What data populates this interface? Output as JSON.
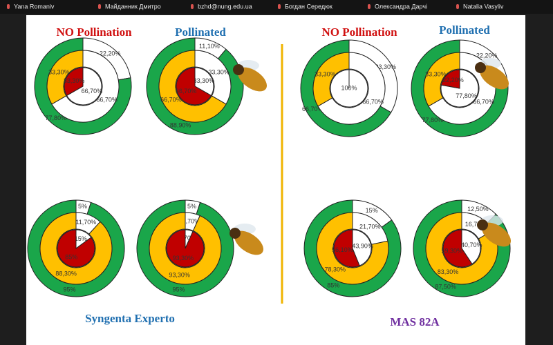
{
  "participants": [
    "Yana Romaniv",
    "Майданник Дмитро",
    "bzhd@nung.edu.ua",
    "Богдан Середюк",
    "Олександра Дарчі",
    "Natalia Vasyliv"
  ],
  "headings": [
    {
      "text": "NO Pollination",
      "color": "#d01010"
    },
    {
      "text": "Pollinated",
      "color": "#1f6fb0"
    },
    {
      "text": "NO Pollination",
      "color": "#d01010"
    },
    {
      "text": "Pollinated",
      "color": "#1f6fb0"
    }
  ],
  "captions": [
    {
      "text": "Syngenta Experto",
      "color": "#1f6fb0"
    },
    {
      "text": "MAS 82A",
      "color": "#7030a0"
    }
  ],
  "blank_color": "#ffffff",
  "donuts": [
    {
      "rings": [
        {
          "color": "#1aa64a",
          "segments": [
            {
              "value": 22.2,
              "label": "22,20%"
            },
            {
              "value": 77.8,
              "label": "77,80%"
            }
          ]
        },
        {
          "color": "#ffc000",
          "segments": [
            {
              "value": 66.7,
              "label": "66,70%"
            },
            {
              "value": 33.3,
              "label": "33,30%"
            }
          ]
        },
        {
          "color": "#c00000",
          "segments": [
            {
              "value": 66.7,
              "label": "66,70%"
            },
            {
              "value": 33.3,
              "label": "33,30%"
            }
          ]
        }
      ]
    },
    {
      "rings": [
        {
          "color": "#1aa64a",
          "segments": [
            {
              "value": 11.1,
              "label": "11,10%"
            },
            {
              "value": 88.9,
              "label": "88,90%"
            }
          ]
        },
        {
          "color": "#ffc000",
          "segments": [
            {
              "value": 33.3,
              "label": "33,30%"
            },
            {
              "value": 66.7,
              "label": "66,70%"
            }
          ]
        },
        {
          "color": "#c00000",
          "segments": [
            {
              "value": 33.3,
              "label": "33,30%"
            },
            {
              "value": 66.7,
              "label": "66,70%"
            }
          ]
        }
      ]
    },
    {
      "rings": [
        {
          "color": "#1aa64a",
          "segments": [
            {
              "value": 33.3,
              "label": "33,30%"
            },
            {
              "value": 66.7,
              "label": "66,70%"
            }
          ]
        },
        {
          "color": "#ffc000",
          "segments": [
            {
              "value": 66.7,
              "label": "66,70%"
            },
            {
              "value": 33.3,
              "label": "33,30%"
            }
          ]
        },
        {
          "color": "#c00000",
          "segments": [
            {
              "value": 100,
              "label": "100%"
            }
          ]
        }
      ]
    },
    {
      "rings": [
        {
          "color": "#1aa64a",
          "segments": [
            {
              "value": 22.2,
              "label": "22,20%"
            },
            {
              "value": 77.8,
              "label": "77,80%"
            }
          ]
        },
        {
          "color": "#ffc000",
          "segments": [
            {
              "value": 66.7,
              "label": "66,70%"
            },
            {
              "value": 33.3,
              "label": "33,30%"
            }
          ]
        },
        {
          "color": "#c00000",
          "segments": [
            {
              "value": 77.8,
              "label": "77,80%"
            },
            {
              "value": 22.2,
              "label": "22,20%"
            }
          ]
        }
      ]
    },
    {
      "rings": [
        {
          "color": "#1aa64a",
          "segments": [
            {
              "value": 5,
              "label": "5%"
            },
            {
              "value": 95,
              "label": "95%"
            }
          ]
        },
        {
          "color": "#ffc000",
          "segments": [
            {
              "value": 11.7,
              "label": "11,70%"
            },
            {
              "value": 88.3,
              "label": "88,30%"
            }
          ]
        },
        {
          "color": "#c00000",
          "segments": [
            {
              "value": 15,
              "label": "15%"
            },
            {
              "value": 85,
              "label": "85%"
            }
          ]
        }
      ]
    },
    {
      "rings": [
        {
          "color": "#1aa64a",
          "segments": [
            {
              "value": 5,
              "label": "5%"
            },
            {
              "value": 95,
              "label": "95%"
            }
          ]
        },
        {
          "color": "#ffc000",
          "segments": [
            {
              "value": 6.7,
              "label": "6,70%"
            },
            {
              "value": 93.3,
              "label": "93,30%"
            }
          ]
        },
        {
          "color": "#c00000",
          "segments": [
            {
              "value": 6.7,
              "label": "6,70%"
            },
            {
              "value": 93.3,
              "label": "93,30%"
            }
          ]
        }
      ]
    },
    {
      "rings": [
        {
          "color": "#1aa64a",
          "segments": [
            {
              "value": 15,
              "label": "15%"
            },
            {
              "value": 85,
              "label": "85%"
            }
          ]
        },
        {
          "color": "#ffc000",
          "segments": [
            {
              "value": 21.7,
              "label": "21,70%"
            },
            {
              "value": 78.3,
              "label": "78,30%"
            }
          ]
        },
        {
          "color": "#c00000",
          "segments": [
            {
              "value": 43.9,
              "label": "43,90%"
            },
            {
              "value": 56.1,
              "label": "56,10%"
            }
          ]
        }
      ]
    },
    {
      "rings": [
        {
          "color": "#1aa64a",
          "segments": [
            {
              "value": 12.5,
              "label": "12,50%"
            },
            {
              "value": 87.5,
              "label": "87,50%"
            }
          ]
        },
        {
          "color": "#ffc000",
          "segments": [
            {
              "value": 16.7,
              "label": "16,70%"
            },
            {
              "value": 83.3,
              "label": "83,30%"
            }
          ]
        },
        {
          "color": "#c00000",
          "segments": [
            {
              "value": 40.7,
              "label": "40,70%"
            },
            {
              "value": 59.3,
              "label": "59,30%"
            }
          ]
        }
      ]
    }
  ]
}
